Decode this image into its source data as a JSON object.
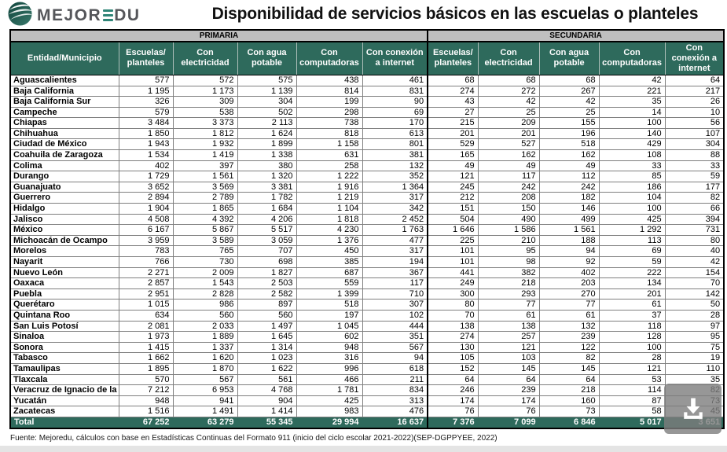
{
  "header": {
    "logo": {
      "icon": "mejoredu-globe-icon",
      "text_before": "MEJOR",
      "text_after": "DU",
      "brand_gray": "#55565a",
      "brand_teal": "#2f8577"
    },
    "title": "Disponibilidad de servicios básicos en las escuelas o planteles"
  },
  "table": {
    "group_headers": [
      "PRIMARIA",
      "SECUNDARIA"
    ],
    "entity_header": "Entidad/Municipio",
    "primaria_columns": [
      "Escuelas/ planteles",
      "Con electricidad",
      "Con agua potable",
      "Con computadoras",
      "Con conexión a internet"
    ],
    "secundaria_columns": [
      "Escuelas/ planteles",
      "Con electricidad",
      "Con agua potable",
      "Con computadoras",
      "Con conexión a internet"
    ],
    "colors": {
      "header_green": "#2e6a5c",
      "band_gray": "#bfbfbf"
    },
    "rows": [
      {
        "entity": "Aguascalientes",
        "primaria": [
          "577",
          "572",
          "575",
          "438",
          "461"
        ],
        "secundaria": [
          "68",
          "68",
          "68",
          "42",
          "64"
        ]
      },
      {
        "entity": "Baja California",
        "primaria": [
          "1 195",
          "1 173",
          "1 139",
          "814",
          "831"
        ],
        "secundaria": [
          "274",
          "272",
          "267",
          "221",
          "217"
        ]
      },
      {
        "entity": "Baja California Sur",
        "primaria": [
          "326",
          "309",
          "304",
          "199",
          "90"
        ],
        "secundaria": [
          "43",
          "42",
          "42",
          "35",
          "26"
        ]
      },
      {
        "entity": "Campeche",
        "primaria": [
          "579",
          "538",
          "502",
          "298",
          "69"
        ],
        "secundaria": [
          "27",
          "25",
          "25",
          "14",
          "10"
        ]
      },
      {
        "entity": "Chiapas",
        "primaria": [
          "3 484",
          "3 373",
          "2 113",
          "738",
          "170"
        ],
        "secundaria": [
          "215",
          "209",
          "155",
          "100",
          "56"
        ]
      },
      {
        "entity": "Chihuahua",
        "primaria": [
          "1 850",
          "1 812",
          "1 624",
          "818",
          "613"
        ],
        "secundaria": [
          "201",
          "201",
          "196",
          "140",
          "107"
        ]
      },
      {
        "entity": "Ciudad de México",
        "primaria": [
          "1 943",
          "1 932",
          "1 899",
          "1 158",
          "801"
        ],
        "secundaria": [
          "529",
          "527",
          "518",
          "429",
          "304"
        ]
      },
      {
        "entity": "Coahuila de Zaragoza",
        "primaria": [
          "1 534",
          "1 419",
          "1 338",
          "631",
          "381"
        ],
        "secundaria": [
          "165",
          "162",
          "162",
          "108",
          "88"
        ]
      },
      {
        "entity": "Colima",
        "primaria": [
          "402",
          "397",
          "380",
          "258",
          "132"
        ],
        "secundaria": [
          "49",
          "49",
          "49",
          "33",
          "33"
        ]
      },
      {
        "entity": "Durango",
        "primaria": [
          "1 729",
          "1 561",
          "1 320",
          "1 222",
          "352"
        ],
        "secundaria": [
          "121",
          "117",
          "112",
          "85",
          "59"
        ]
      },
      {
        "entity": "Guanajuato",
        "primaria": [
          "3 652",
          "3 569",
          "3 381",
          "1 916",
          "1 364"
        ],
        "secundaria": [
          "245",
          "242",
          "242",
          "186",
          "177"
        ]
      },
      {
        "entity": "Guerrero",
        "primaria": [
          "2 894",
          "2 789",
          "1 782",
          "1 219",
          "317"
        ],
        "secundaria": [
          "212",
          "208",
          "182",
          "104",
          "82"
        ]
      },
      {
        "entity": "Hidalgo",
        "primaria": [
          "1 904",
          "1 865",
          "1 684",
          "1 104",
          "342"
        ],
        "secundaria": [
          "151",
          "150",
          "146",
          "100",
          "66"
        ]
      },
      {
        "entity": "Jalisco",
        "primaria": [
          "4 508",
          "4 392",
          "4 206",
          "1 818",
          "2 452"
        ],
        "secundaria": [
          "504",
          "490",
          "499",
          "425",
          "394"
        ]
      },
      {
        "entity": "México",
        "primaria": [
          "6 167",
          "5 867",
          "5 517",
          "4 230",
          "1 763"
        ],
        "secundaria": [
          "1 646",
          "1 586",
          "1 561",
          "1 292",
          "731"
        ]
      },
      {
        "entity": "Michoacán de Ocampo",
        "primaria": [
          "3 959",
          "3 589",
          "3 059",
          "1 376",
          "477"
        ],
        "secundaria": [
          "225",
          "210",
          "188",
          "113",
          "80"
        ]
      },
      {
        "entity": "Morelos",
        "primaria": [
          "783",
          "765",
          "707",
          "450",
          "317"
        ],
        "secundaria": [
          "101",
          "95",
          "94",
          "69",
          "40"
        ]
      },
      {
        "entity": "Nayarit",
        "primaria": [
          "766",
          "730",
          "698",
          "385",
          "194"
        ],
        "secundaria": [
          "101",
          "98",
          "92",
          "59",
          "42"
        ]
      },
      {
        "entity": "Nuevo León",
        "primaria": [
          "2 271",
          "2 009",
          "1 827",
          "687",
          "367"
        ],
        "secundaria": [
          "441",
          "382",
          "402",
          "222",
          "154"
        ]
      },
      {
        "entity": "Oaxaca",
        "primaria": [
          "2 857",
          "1 543",
          "2 503",
          "559",
          "117"
        ],
        "secundaria": [
          "249",
          "218",
          "203",
          "134",
          "70"
        ]
      },
      {
        "entity": "Puebla",
        "primaria": [
          "2 951",
          "2 828",
          "2 582",
          "1 399",
          "710"
        ],
        "secundaria": [
          "300",
          "293",
          "270",
          "201",
          "142"
        ]
      },
      {
        "entity": "Querétaro",
        "primaria": [
          "1 015",
          "986",
          "897",
          "518",
          "307"
        ],
        "secundaria": [
          "80",
          "77",
          "77",
          "61",
          "50"
        ]
      },
      {
        "entity": "Quintana Roo",
        "primaria": [
          "634",
          "560",
          "560",
          "197",
          "102"
        ],
        "secundaria": [
          "70",
          "61",
          "61",
          "37",
          "28"
        ]
      },
      {
        "entity": "San Luis Potosí",
        "primaria": [
          "2 081",
          "2 033",
          "1 497",
          "1 045",
          "444"
        ],
        "secundaria": [
          "138",
          "138",
          "132",
          "118",
          "97"
        ]
      },
      {
        "entity": "Sinaloa",
        "primaria": [
          "1 973",
          "1 889",
          "1 645",
          "602",
          "351"
        ],
        "secundaria": [
          "274",
          "257",
          "239",
          "128",
          "95"
        ]
      },
      {
        "entity": "Sonora",
        "primaria": [
          "1 415",
          "1 337",
          "1 314",
          "948",
          "567"
        ],
        "secundaria": [
          "130",
          "121",
          "122",
          "100",
          "75"
        ]
      },
      {
        "entity": "Tabasco",
        "primaria": [
          "1 662",
          "1 620",
          "1 023",
          "316",
          "94"
        ],
        "secundaria": [
          "105",
          "103",
          "82",
          "28",
          "19"
        ]
      },
      {
        "entity": "Tamaulipas",
        "primaria": [
          "1 895",
          "1 870",
          "1 622",
          "996",
          "618"
        ],
        "secundaria": [
          "152",
          "145",
          "145",
          "121",
          "110"
        ]
      },
      {
        "entity": "Tlaxcala",
        "primaria": [
          "570",
          "567",
          "561",
          "466",
          "211"
        ],
        "secundaria": [
          "64",
          "64",
          "64",
          "53",
          "35"
        ]
      },
      {
        "entity": "Veracruz de Ignacio de la",
        "primaria": [
          "7 212",
          "6 953",
          "4 768",
          "1 781",
          "834"
        ],
        "secundaria": [
          "246",
          "239",
          "218",
          "114",
          "82"
        ]
      },
      {
        "entity": "Yucatán",
        "primaria": [
          "948",
          "941",
          "904",
          "425",
          "313"
        ],
        "secundaria": [
          "174",
          "174",
          "160",
          "87",
          "73"
        ]
      },
      {
        "entity": "Zacatecas",
        "primaria": [
          "1 516",
          "1 491",
          "1 414",
          "983",
          "476"
        ],
        "secundaria": [
          "76",
          "76",
          "73",
          "58",
          "45"
        ]
      }
    ],
    "total": {
      "label": "Total",
      "primaria": [
        "67 252",
        "63 279",
        "55 345",
        "29 994",
        "16 637"
      ],
      "secundaria": [
        "7 376",
        "7 099",
        "6 846",
        "5 017",
        "3 651"
      ]
    }
  },
  "footer": {
    "source": "Fuente: Mejoredu, cálculos con base en Estadísticas Continuas del Formato 911 (inicio del ciclo escolar 2021-2022)(SEP-DGPPYEE, 2022)"
  },
  "download_button": {
    "icon": "download-icon"
  }
}
